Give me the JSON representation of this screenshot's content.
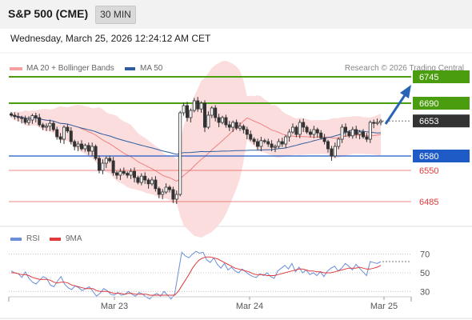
{
  "header": {
    "title": "S&P 500 (CME)",
    "timeframe": "30 MIN"
  },
  "datetime": "Wednesday, March 25, 2026 12:24:12 AM CET",
  "legend": {
    "bollinger": "MA 20 + Bollinger Bands",
    "ma50": "MA 50",
    "rsi": "RSI",
    "rsi_ma": "9MA"
  },
  "research": "Research © 2026 Trading Central",
  "colors": {
    "resistance": "#4a9d0e",
    "support": "#1f5bc6",
    "minor_support": "#e03a3a",
    "current": "#333333",
    "bollinger_fill": "#fbd9d9",
    "bollinger_line": "#f08080",
    "ma50": "#2f5d9e",
    "candle_up": "#333333",
    "candle_down": "#333333",
    "arrow": "#2a64b6",
    "rsi_line": "#6a8fd8",
    "rsi_ma_line": "#e03a3a"
  },
  "chart_data": [
    {
      "type": "candlestick",
      "price_range": [
        6455,
        6755
      ],
      "x_ticks": [
        "Mar 23",
        "Mar 24",
        "Mar 25"
      ],
      "levels": [
        {
          "value": 6745,
          "label": "6745",
          "kind": "resistance"
        },
        {
          "value": 6690,
          "label": "6690",
          "kind": "resistance"
        },
        {
          "value": 6653,
          "label": "6653",
          "kind": "current"
        },
        {
          "value": 6580,
          "label": "6580",
          "kind": "support"
        },
        {
          "value": 6550,
          "label": "6550",
          "kind": "minor_support"
        },
        {
          "value": 6485,
          "label": "6485",
          "kind": "minor_support"
        }
      ],
      "closes": [
        6665,
        6662,
        6660,
        6658,
        6650,
        6655,
        6664,
        6660,
        6645,
        6640,
        6642,
        6648,
        6635,
        6620,
        6615,
        6640,
        6632,
        6610,
        6600,
        6605,
        6595,
        6602,
        6590,
        6600,
        6575,
        6550,
        6565,
        6575,
        6570,
        6545,
        6540,
        6548,
        6544,
        6540,
        6548,
        6535,
        6525,
        6538,
        6530,
        6522,
        6530,
        6512,
        6500,
        6505,
        6515,
        6510,
        6490,
        6500,
        6670,
        6685,
        6660,
        6675,
        6695,
        6678,
        6690,
        6640,
        6665,
        6680,
        6660,
        6650,
        6660,
        6645,
        6640,
        6650,
        6638,
        6642,
        6635,
        6625,
        6615,
        6610,
        6600,
        6612,
        6610,
        6605,
        6598,
        6600,
        6610,
        6605,
        6620,
        6630,
        6640,
        6625,
        6650,
        6640,
        6630,
        6625,
        6635,
        6628,
        6618,
        6610,
        6595,
        6580,
        6600,
        6615,
        6640,
        6630,
        6622,
        6635,
        6625,
        6630,
        6620,
        6615,
        6650,
        6648,
        6650,
        6653
      ],
      "rsi": {
        "range": [
          20,
          80
        ],
        "ticks": [
          70,
          50,
          30
        ],
        "values": [
          52,
          50,
          49,
          45,
          51,
          44,
          40,
          38,
          42,
          46,
          44,
          37,
          35,
          41,
          46,
          38,
          34,
          32,
          36,
          34,
          31,
          33,
          35,
          30,
          25,
          28,
          33,
          31,
          27,
          26,
          29,
          26,
          27,
          30,
          27,
          25,
          29,
          27,
          24,
          22,
          26,
          28,
          25,
          30,
          26,
          22,
          27,
          50,
          72,
          68,
          66,
          70,
          73,
          71,
          72,
          64,
          61,
          66,
          59,
          55,
          60,
          53,
          56,
          52,
          50,
          54,
          51,
          48,
          46,
          45,
          49,
          47,
          50,
          46,
          44,
          52,
          55,
          58,
          54,
          60,
          51,
          56,
          50,
          53,
          48,
          50,
          47,
          51,
          46,
          52,
          55,
          57,
          52,
          55,
          60,
          57,
          53,
          59,
          55,
          51,
          47,
          62,
          61,
          60,
          62
        ],
        "ma_values": [
          50,
          50,
          49,
          48,
          48,
          47,
          45,
          44,
          43,
          43,
          43,
          42,
          40,
          39,
          40,
          40,
          39,
          37,
          36,
          35,
          34,
          33,
          33,
          33,
          31,
          30,
          30,
          30,
          29,
          28,
          28,
          28,
          27,
          28,
          28,
          27,
          27,
          27,
          27,
          26,
          26,
          26,
          26,
          26,
          26,
          26,
          26,
          30,
          36,
          42,
          48,
          55,
          60,
          64,
          66,
          67,
          67,
          66,
          65,
          63,
          61,
          59,
          57,
          55,
          54,
          53,
          52,
          51,
          49,
          48,
          48,
          48,
          47,
          47,
          47,
          48,
          49,
          50,
          51,
          52,
          53,
          54,
          54,
          53,
          52,
          52,
          51,
          51,
          50,
          50,
          50,
          51,
          52,
          53,
          54,
          55,
          55,
          55,
          56,
          55,
          54,
          54,
          55,
          56,
          58
        ]
      }
    }
  ]
}
